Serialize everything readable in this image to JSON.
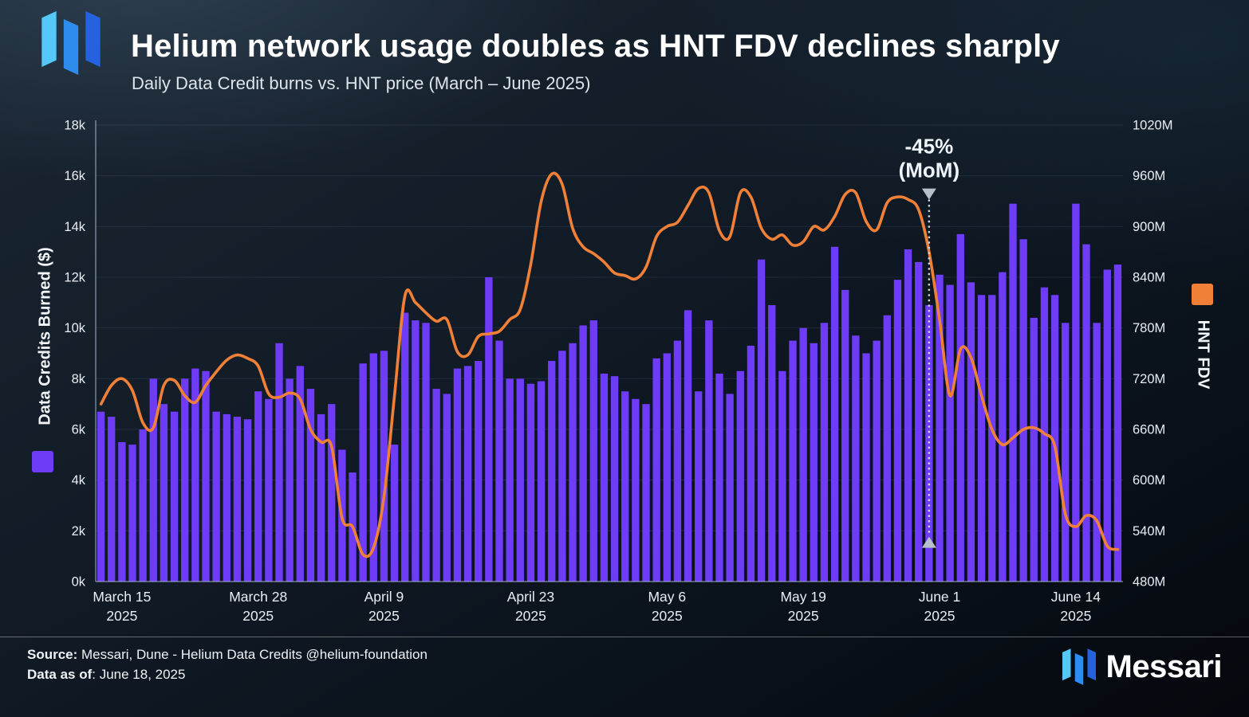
{
  "header": {
    "title": "Helium network usage doubles as HNT FDV declines sharply",
    "subtitle": "Daily Data Credit burns vs. HNT price (March – June 2025)"
  },
  "footer": {
    "source_label": "Source:",
    "source_text": " Messari, Dune - Helium Data Credits @helium-foundation",
    "asof_label": "Data as of",
    "asof_text": ": June 18, 2025",
    "brand": "Messari"
  },
  "chart_data": {
    "type": "bar+line",
    "title": "Helium network usage doubles as HNT FDV declines sharply",
    "subtitle": "Daily Data Credit burns vs. HNT price (March – June 2025)",
    "left_axis": {
      "label": "Data Credits Burned ($)",
      "unit": "thousand $ per day",
      "min": 0,
      "max": 18,
      "ticks": [
        "0k",
        "2k",
        "4k",
        "6k",
        "8k",
        "10k",
        "12k",
        "14k",
        "16k",
        "18k"
      ],
      "tick_values": [
        0,
        2,
        4,
        6,
        8,
        10,
        12,
        14,
        16,
        18
      ]
    },
    "right_axis": {
      "label": "HNT FDV",
      "unit": "million $",
      "min": 480,
      "max": 1020,
      "ticks": [
        "480M",
        "540M",
        "600M",
        "660M",
        "720M",
        "780M",
        "840M",
        "900M",
        "960M",
        "1020M"
      ],
      "tick_values": [
        480,
        540,
        600,
        660,
        720,
        780,
        840,
        900,
        960,
        1020
      ]
    },
    "x_axis": {
      "ticks": [
        {
          "index": 2,
          "line1": "March 15",
          "line2": "2025"
        },
        {
          "index": 15,
          "line1": "March 28",
          "line2": "2025"
        },
        {
          "index": 27,
          "line1": "April 9",
          "line2": "2025"
        },
        {
          "index": 41,
          "line1": "April 23",
          "line2": "2025"
        },
        {
          "index": 54,
          "line1": "May 6",
          "line2": "2025"
        },
        {
          "index": 67,
          "line1": "May 19",
          "line2": "2025"
        },
        {
          "index": 80,
          "line1": "June 1",
          "line2": "2025"
        },
        {
          "index": 93,
          "line1": "June 14",
          "line2": "2025"
        }
      ]
    },
    "bars": {
      "name": "Data Credits Burned ($)",
      "unit": "k$",
      "color": "#6e3cf6",
      "values": [
        6.7,
        6.5,
        5.5,
        5.4,
        6.0,
        8.0,
        7.0,
        6.7,
        8.0,
        8.4,
        8.3,
        6.7,
        6.6,
        6.5,
        6.4,
        7.5,
        7.2,
        9.4,
        8.0,
        8.5,
        7.6,
        6.6,
        7.0,
        5.2,
        4.3,
        8.6,
        9.0,
        9.1,
        5.4,
        10.6,
        10.3,
        10.2,
        7.6,
        7.4,
        8.4,
        8.5,
        8.7,
        12.0,
        9.5,
        8.0,
        8.0,
        7.8,
        7.9,
        8.7,
        9.1,
        9.4,
        10.1,
        10.3,
        8.2,
        8.1,
        7.5,
        7.2,
        7.0,
        8.8,
        9.0,
        9.5,
        10.7,
        7.5,
        10.3,
        8.2,
        7.4,
        8.3,
        9.3,
        12.7,
        10.9,
        8.3,
        9.5,
        10.0,
        9.4,
        10.2,
        13.2,
        11.5,
        9.7,
        9.0,
        9.5,
        10.5,
        11.9,
        13.1,
        12.6,
        10.9,
        12.1,
        11.7,
        13.7,
        11.8,
        11.3,
        11.3,
        12.2,
        14.9,
        13.5,
        10.4,
        11.6,
        11.3,
        10.2,
        14.9,
        13.3,
        10.2,
        12.3,
        12.5
      ]
    },
    "line": {
      "name": "HNT FDV",
      "unit": "M$",
      "color": "#f08038",
      "values": [
        690,
        712,
        720,
        706,
        668,
        662,
        712,
        718,
        700,
        692,
        712,
        728,
        742,
        748,
        744,
        735,
        702,
        698,
        703,
        696,
        660,
        645,
        640,
        555,
        545,
        512,
        520,
        580,
        700,
        818,
        810,
        798,
        788,
        790,
        752,
        748,
        770,
        773,
        776,
        790,
        802,
        855,
        930,
        962,
        950,
        898,
        876,
        868,
        858,
        845,
        842,
        838,
        852,
        888,
        900,
        905,
        925,
        945,
        940,
        895,
        888,
        940,
        935,
        898,
        885,
        890,
        878,
        882,
        900,
        896,
        912,
        938,
        940,
        906,
        896,
        928,
        935,
        932,
        920,
        870,
        790,
        700,
        755,
        745,
        700,
        660,
        642,
        650,
        660,
        662,
        655,
        640,
        560,
        545,
        558,
        552,
        522,
        518
      ]
    },
    "annotation": {
      "line1": "-45%",
      "line2": "(MoM)",
      "x_index": 79,
      "from_value": 945,
      "to_value": 520
    }
  }
}
